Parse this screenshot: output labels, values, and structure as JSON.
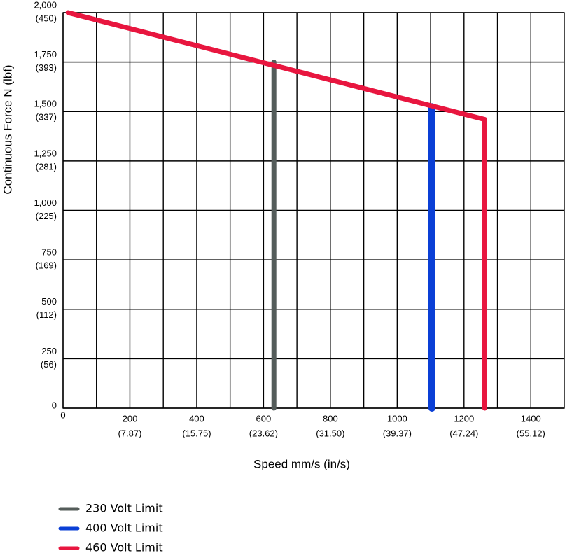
{
  "chart_data": {
    "type": "line",
    "y_label": "Continuous Force N (lbf)",
    "x_label": "Speed mm/s (in/s)",
    "xlim": [
      0,
      1500
    ],
    "ylim": [
      0,
      2000
    ],
    "xticks": [
      0,
      {
        "value": 200,
        "label": "200",
        "label2": "(7.87)"
      },
      {
        "value": 400,
        "label": "400",
        "label2": "(15.75)"
      },
      {
        "value": 600,
        "label": "600",
        "label2": "(23.62)"
      },
      {
        "value": 800,
        "label": "800",
        "label2": "(31.50)"
      },
      {
        "value": 1000,
        "label": "1000",
        "label2": "(39.37)"
      },
      {
        "value": 1200,
        "label": "1200",
        "label2": "(47.24)"
      },
      {
        "value": 1400,
        "label": "1400",
        "label2": "(55.12)"
      }
    ],
    "x_minor_ticks": [
      100,
      300,
      500,
      700,
      900,
      1100,
      1300
    ],
    "yticks": [
      0,
      {
        "value": 250,
        "label": "250",
        "label2": "(56)"
      },
      {
        "value": 500,
        "label": "500",
        "label2": "(112)"
      },
      {
        "value": 750,
        "label": "750",
        "label2": "(169)"
      },
      {
        "value": 1000,
        "label": "1,000",
        "label2": "(225)"
      },
      {
        "value": 1250,
        "label": "1,250",
        "label2": "(281)"
      },
      {
        "value": 1500,
        "label": "1,500",
        "label2": "(337)"
      },
      {
        "value": 1750,
        "label": "1,750",
        "label2": "(393)"
      },
      {
        "value": 2000,
        "label": "2,000",
        "label2": "(450)"
      }
    ],
    "grid": true,
    "legend": "bottom-left",
    "series": [
      {
        "name": "230 Volt Limit",
        "color": "#545c5a",
        "x": [
          631,
          631
        ],
        "values": [
          0,
          1750
        ]
      },
      {
        "name": "400 Volt Limit",
        "color": "#0a3fd6",
        "x": [
          1104,
          1104
        ],
        "values": [
          0,
          1525
        ]
      },
      {
        "name": "460 Volt Limit",
        "color": "#e8163f",
        "x": [
          15,
          1262,
          1262
        ],
        "values": [
          2000,
          1460,
          0
        ]
      }
    ]
  }
}
